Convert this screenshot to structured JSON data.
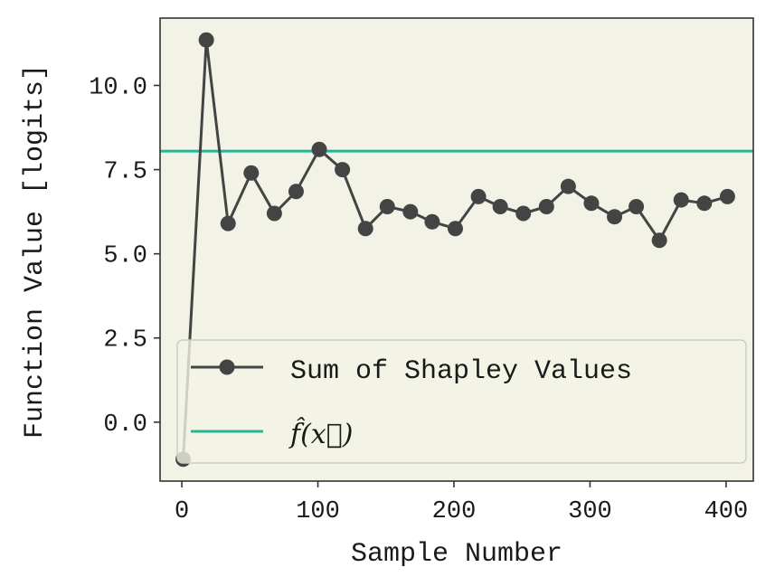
{
  "chart_data": {
    "type": "line",
    "xlabel": "Sample Number",
    "ylabel": "Function Value [logits]",
    "xlim": [
      -16,
      420
    ],
    "ylim": [
      -1.75,
      12.0
    ],
    "x_ticks": [
      0,
      100,
      200,
      300,
      400
    ],
    "x_tick_labels": [
      "0",
      "100",
      "200",
      "300",
      "400"
    ],
    "y_ticks": [
      0.0,
      2.5,
      5.0,
      7.5,
      10.0
    ],
    "y_tick_labels": [
      "0.0",
      "2.5",
      "5.0",
      "7.5",
      "10.0"
    ],
    "grid": false,
    "legend_position": "lower-center",
    "background_color": "#f2f2e6",
    "series": [
      {
        "name": "Sum of Shapley Values",
        "color": "#444444",
        "marker": "circle",
        "x": [
          1,
          18,
          34,
          51,
          68,
          84,
          101,
          118,
          135,
          151,
          168,
          184,
          201,
          218,
          234,
          251,
          268,
          284,
          301,
          318,
          334,
          351,
          367,
          384,
          401
        ],
        "y": [
          -1.1,
          11.35,
          5.9,
          7.4,
          6.2,
          6.85,
          8.1,
          7.5,
          5.75,
          6.4,
          6.25,
          5.95,
          5.75,
          6.7,
          6.4,
          6.2,
          6.4,
          7.0,
          6.5,
          6.1,
          6.4,
          5.4,
          6.6,
          6.5,
          6.7
        ]
      },
      {
        "name": "f̂(x⃗)",
        "color": "#23b894",
        "type": "hline",
        "y": 8.05
      }
    ]
  }
}
